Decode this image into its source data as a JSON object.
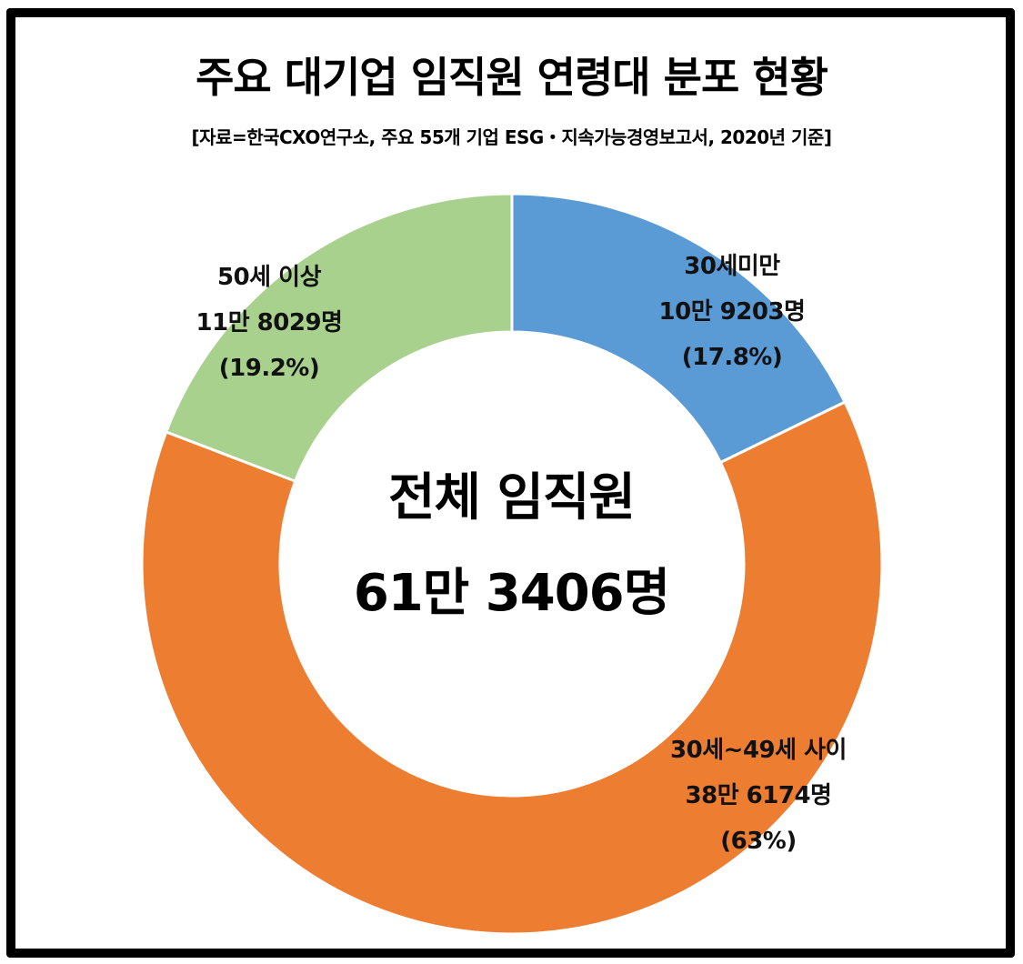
{
  "chart_data": {
    "type": "pie",
    "variant": "donut",
    "title": "주요 대기업 임직원 연령대 분포 현황",
    "subtitle": "[자료=한국CXO연구소, 주요 55개 기업 ESG・지속가능경영보고서, 2020년 기준]",
    "center_label": {
      "line1": "전체 임직원",
      "line2": "61만 3406명"
    },
    "total": 613406,
    "categories": [
      "30세미만",
      "30세~49세 사이",
      "50세 이상"
    ],
    "values": [
      109203,
      386174,
      118029
    ],
    "percentages": [
      17.8,
      63,
      19.2
    ],
    "colors": [
      "#5B9BD5",
      "#ED7D31",
      "#A9D18E"
    ],
    "start_angle": "12 o'clock, clockwise",
    "segments": [
      {
        "name": "30세미만",
        "count_label": "10만 9203명",
        "percent_label": "(17.8%)",
        "value": 109203,
        "percent": 17.8,
        "color": "#5B9BD5"
      },
      {
        "name": "30세~49세 사이",
        "count_label": "38만 6174명",
        "percent_label": "(63%)",
        "value": 386174,
        "percent": 63,
        "color": "#ED7D31"
      },
      {
        "name": "50세 이상",
        "count_label": "11만 8029명",
        "percent_label": "(19.2%)",
        "value": 118029,
        "percent": 19.2,
        "color": "#A9D18E"
      }
    ],
    "legend": "none (labels placed on segments)"
  }
}
